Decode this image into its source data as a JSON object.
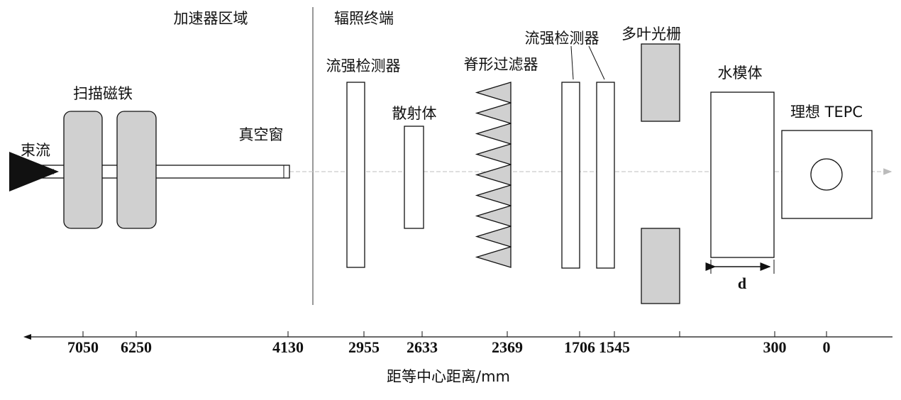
{
  "regions": {
    "accelerator": "加速器区域",
    "nozzle": "辐照终端"
  },
  "components": {
    "beam": "束流",
    "scanning_magnets": "扫描磁铁",
    "vacuum_window": "真空窗",
    "monitor_1": "流强检测器",
    "scatterer": "散射体",
    "ridge_filter": "脊形过滤器",
    "monitor_2": "流强检测器",
    "mlc": "多叶光栅",
    "water_phantom": "水模体",
    "depth": "d",
    "tepc": "理想 TEPC"
  },
  "axis": {
    "label": "距等中心距离/mm",
    "ticks": [
      "7050",
      "6250",
      "4130",
      "2955",
      "2633",
      "2369",
      "1706",
      "1545",
      "300",
      "0"
    ]
  }
}
